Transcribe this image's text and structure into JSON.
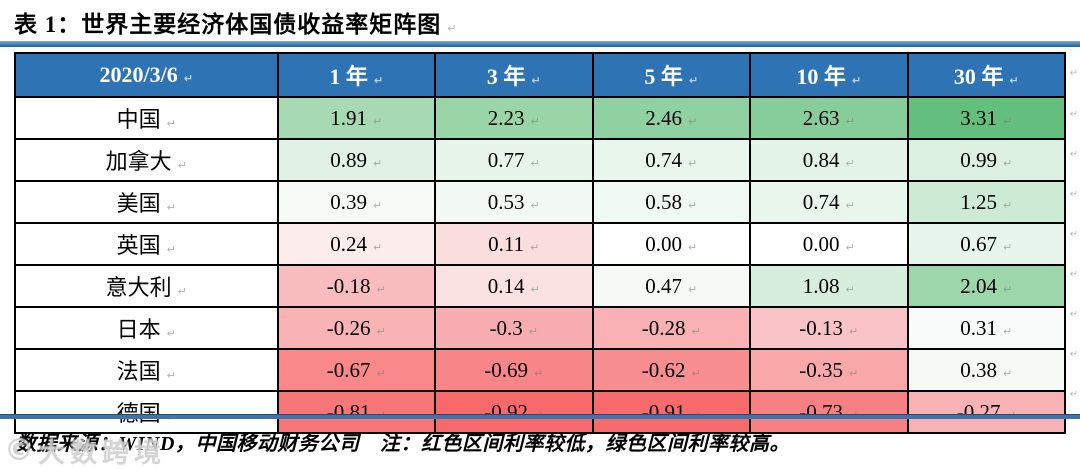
{
  "title": "表 1：世界主要经济体国债收益率矩阵图",
  "table": {
    "date_header": "2020/3/6",
    "columns": [
      "1 年",
      "3 年",
      "5 年",
      "10 年",
      "30 年"
    ],
    "rows": [
      {
        "label": "中国",
        "values": [
          "1.91",
          "2.23",
          "2.46",
          "2.63",
          "3.31"
        ],
        "colors": [
          "#a7d9b2",
          "#9ad5a8",
          "#8fd1a0",
          "#87cd99",
          "#64be7c"
        ]
      },
      {
        "label": "加拿大",
        "values": [
          "0.89",
          "0.77",
          "0.74",
          "0.84",
          "0.99"
        ],
        "colors": [
          "#e0f2e5",
          "#e7f5eb",
          "#e9f6ec",
          "#e3f3e8",
          "#dbf0e1"
        ]
      },
      {
        "label": "美国",
        "values": [
          "0.39",
          "0.53",
          "0.58",
          "0.74",
          "1.25"
        ],
        "colors": [
          "#f7fbf8",
          "#f3faf5",
          "#f1f9f3",
          "#e9f6ec",
          "#cdead5"
        ]
      },
      {
        "label": "英国",
        "values": [
          "0.24",
          "0.11",
          "0.00",
          "0.00",
          "0.67"
        ],
        "colors": [
          "#fcecec",
          "#fadede",
          "#ffffff",
          "#ffffff",
          "#e8f5ec"
        ]
      },
      {
        "label": "意大利",
        "values": [
          "-0.18",
          "0.14",
          "0.47",
          "1.08",
          "2.04"
        ],
        "colors": [
          "#fabdbf",
          "#fbe2e2",
          "#f5faf6",
          "#d7eedd",
          "#9ed6ac"
        ]
      },
      {
        "label": "日本",
        "values": [
          "-0.26",
          "-0.3",
          "-0.28",
          "-0.13",
          "0.31"
        ],
        "colors": [
          "#f9b3b5",
          "#f8aeb0",
          "#f9b1b3",
          "#fac4c6",
          "#f8fbf9"
        ]
      },
      {
        "label": "法国",
        "values": [
          "-0.67",
          "-0.69",
          "-0.62",
          "-0.35",
          "0.38"
        ],
        "colors": [
          "#f8888a",
          "#f88587",
          "#f88e90",
          "#f9a8aa",
          "#f6faf7"
        ]
      },
      {
        "label": "德国",
        "values": [
          "-0.81",
          "-0.92",
          "-0.91",
          "-0.73",
          "-0.27"
        ],
        "colors": [
          "#f77678",
          "#f7696b",
          "#f76b6d",
          "#f78082",
          "#f9b2b4"
        ]
      }
    ]
  },
  "footnote": "数据来源：WIND，中国移动财务公司　注：红色区间利率较低，绿色区间利率较高。",
  "watermark": {
    "logo": "©",
    "text": "大数跨境"
  },
  "icons": {
    "paragraph_mark": "↵"
  },
  "colors": {
    "header_bg": "#2e74b5",
    "header_text": "#ffffff",
    "border": "#000000",
    "rule_top": "#2e74b5",
    "rule_bottom": "#4472a8",
    "low_yield_red": "#f8696b",
    "high_yield_green": "#63be7b"
  }
}
